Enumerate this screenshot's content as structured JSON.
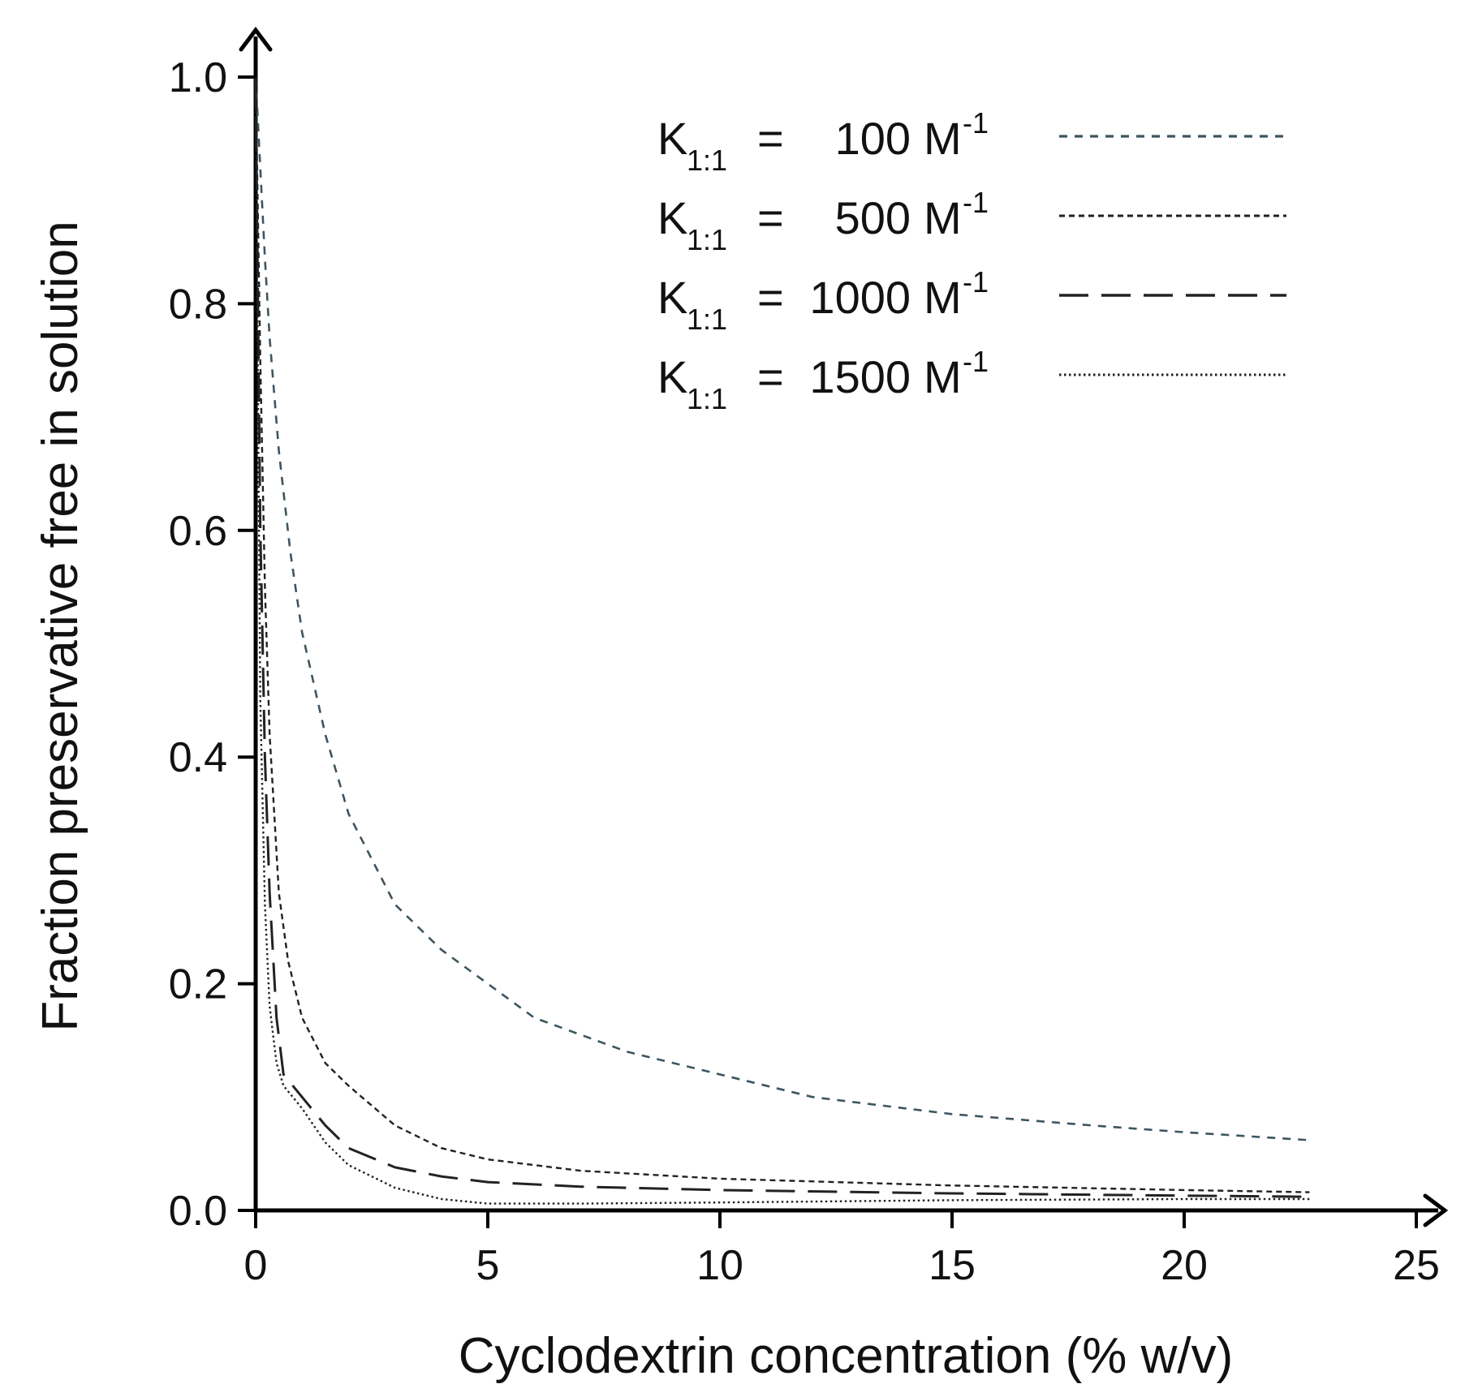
{
  "chart_data": {
    "type": "line",
    "title": "",
    "xlabel": "Cyclodextrin concentration (% w/v)",
    "ylabel": "Fraction preservative free in solution",
    "xlim": [
      0,
      25
    ],
    "ylim": [
      0,
      1.0
    ],
    "x_ticks": [
      "0",
      "5",
      "10",
      "15",
      "20",
      "25"
    ],
    "y_ticks": [
      "0.0",
      "0.2",
      "0.4",
      "0.6",
      "0.8",
      "1.0"
    ],
    "grid": false,
    "legend_position": "top-right",
    "series": [
      {
        "name": "K1:1 = 100 M-1",
        "legend": {
          "k": "K",
          "sub": "1:1",
          "eq": "=",
          "value": "100",
          "unit": "M",
          "sup": "-1"
        },
        "style": "short-dash",
        "color": "#3d5560",
        "x": [
          0,
          0.1,
          0.2,
          0.3,
          0.5,
          0.75,
          1,
          1.5,
          2,
          3,
          4,
          5,
          6,
          8,
          10,
          12,
          15,
          18,
          20,
          22.7
        ],
        "y": [
          1.0,
          0.92,
          0.84,
          0.77,
          0.67,
          0.58,
          0.51,
          0.42,
          0.35,
          0.27,
          0.23,
          0.2,
          0.17,
          0.14,
          0.12,
          0.1,
          0.085,
          0.075,
          0.069,
          0.062
        ]
      },
      {
        "name": "K1:1 = 500 M-1",
        "legend": {
          "k": "K",
          "sub": "1:1",
          "eq": "=",
          "value": "500",
          "unit": "M",
          "sup": "-1"
        },
        "style": "fine-dash",
        "color": "#222222",
        "x": [
          0,
          0.1,
          0.2,
          0.3,
          0.5,
          0.7,
          1,
          1.5,
          2,
          3,
          4,
          5,
          7,
          10,
          15,
          20,
          22.7
        ],
        "y": [
          1.0,
          0.75,
          0.55,
          0.42,
          0.28,
          0.22,
          0.17,
          0.13,
          0.11,
          0.075,
          0.055,
          0.045,
          0.035,
          0.028,
          0.022,
          0.018,
          0.016
        ]
      },
      {
        "name": "K1:1 = 1000 M-1",
        "legend": {
          "k": "K",
          "sub": "1:1",
          "eq": "=",
          "value": "1000",
          "unit": "M",
          "sup": "-1"
        },
        "style": "long-dash",
        "color": "#222222",
        "x": [
          0,
          0.1,
          0.2,
          0.3,
          0.45,
          0.6,
          1,
          1.5,
          2,
          3,
          4,
          5,
          7,
          10,
          15,
          20,
          22.7
        ],
        "y": [
          1.0,
          0.6,
          0.4,
          0.28,
          0.17,
          0.12,
          0.1,
          0.075,
          0.055,
          0.038,
          0.03,
          0.025,
          0.021,
          0.018,
          0.015,
          0.013,
          0.012
        ]
      },
      {
        "name": "K1:1 = 1500 M-1",
        "legend": {
          "k": "K",
          "sub": "1:1",
          "eq": "=",
          "value": "1500",
          "unit": "M",
          "sup": "-1"
        },
        "style": "dotted",
        "color": "#222222",
        "x": [
          0,
          0.1,
          0.2,
          0.3,
          0.45,
          0.6,
          1,
          1.5,
          2,
          3,
          4,
          5,
          7,
          10,
          15,
          20,
          22.7
        ],
        "y": [
          1.0,
          0.45,
          0.27,
          0.18,
          0.13,
          0.11,
          0.09,
          0.06,
          0.04,
          0.02,
          0.01,
          0.006,
          0.006,
          0.007,
          0.009,
          0.01,
          0.01
        ]
      }
    ]
  }
}
